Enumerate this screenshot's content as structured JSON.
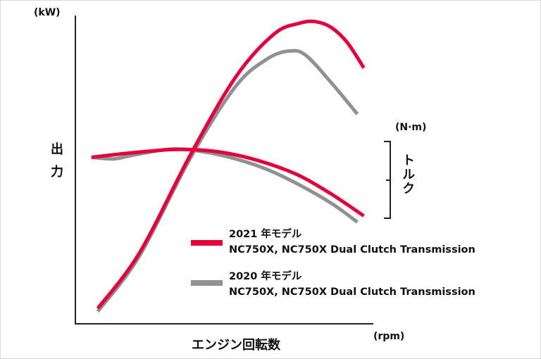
{
  "chart_data": {
    "type": "line",
    "axes": {
      "y_left_unit": "(kW)",
      "y_left_label": "出力",
      "y_right_unit": "(N·m)",
      "y_right_label": "トルク",
      "x_unit": "(rpm)",
      "x_label": "エンジン回転数",
      "ticks_shown": false,
      "grid": false
    },
    "series": [
      {
        "name": "2021 年モデル",
        "subtitle": "NC750X, NC750X Dual Clutch Transmission",
        "color": "#e4003a",
        "power": [
          [
            0.07,
            0.05
          ],
          [
            0.2,
            0.23
          ],
          [
            0.36,
            0.55
          ],
          [
            0.5,
            0.8
          ],
          [
            0.62,
            0.94
          ],
          [
            0.7,
            0.975
          ],
          [
            0.75,
            0.98
          ],
          [
            0.8,
            0.96
          ],
          [
            0.85,
            0.91
          ],
          [
            0.9,
            0.83
          ]
        ],
        "torque": [
          [
            0.05,
            0.54
          ],
          [
            0.18,
            0.555
          ],
          [
            0.3,
            0.565
          ],
          [
            0.4,
            0.563
          ],
          [
            0.5,
            0.548
          ],
          [
            0.6,
            0.52
          ],
          [
            0.7,
            0.48
          ],
          [
            0.8,
            0.42
          ],
          [
            0.9,
            0.35
          ]
        ]
      },
      {
        "name": "2020 年モデル",
        "subtitle": "NC750X, NC750X Dual Clutch Transmission",
        "color": "#8f9195",
        "power": [
          [
            0.07,
            0.04
          ],
          [
            0.2,
            0.22
          ],
          [
            0.36,
            0.54
          ],
          [
            0.5,
            0.77
          ],
          [
            0.6,
            0.86
          ],
          [
            0.67,
            0.885
          ],
          [
            0.72,
            0.87
          ],
          [
            0.8,
            0.78
          ],
          [
            0.88,
            0.68
          ]
        ],
        "torque": [
          [
            0.05,
            0.54
          ],
          [
            0.12,
            0.535
          ],
          [
            0.18,
            0.547
          ],
          [
            0.3,
            0.567
          ],
          [
            0.4,
            0.558
          ],
          [
            0.5,
            0.535
          ],
          [
            0.6,
            0.5
          ],
          [
            0.7,
            0.45
          ],
          [
            0.8,
            0.39
          ],
          [
            0.88,
            0.33
          ]
        ]
      }
    ],
    "legend_position": "bottom-right"
  }
}
